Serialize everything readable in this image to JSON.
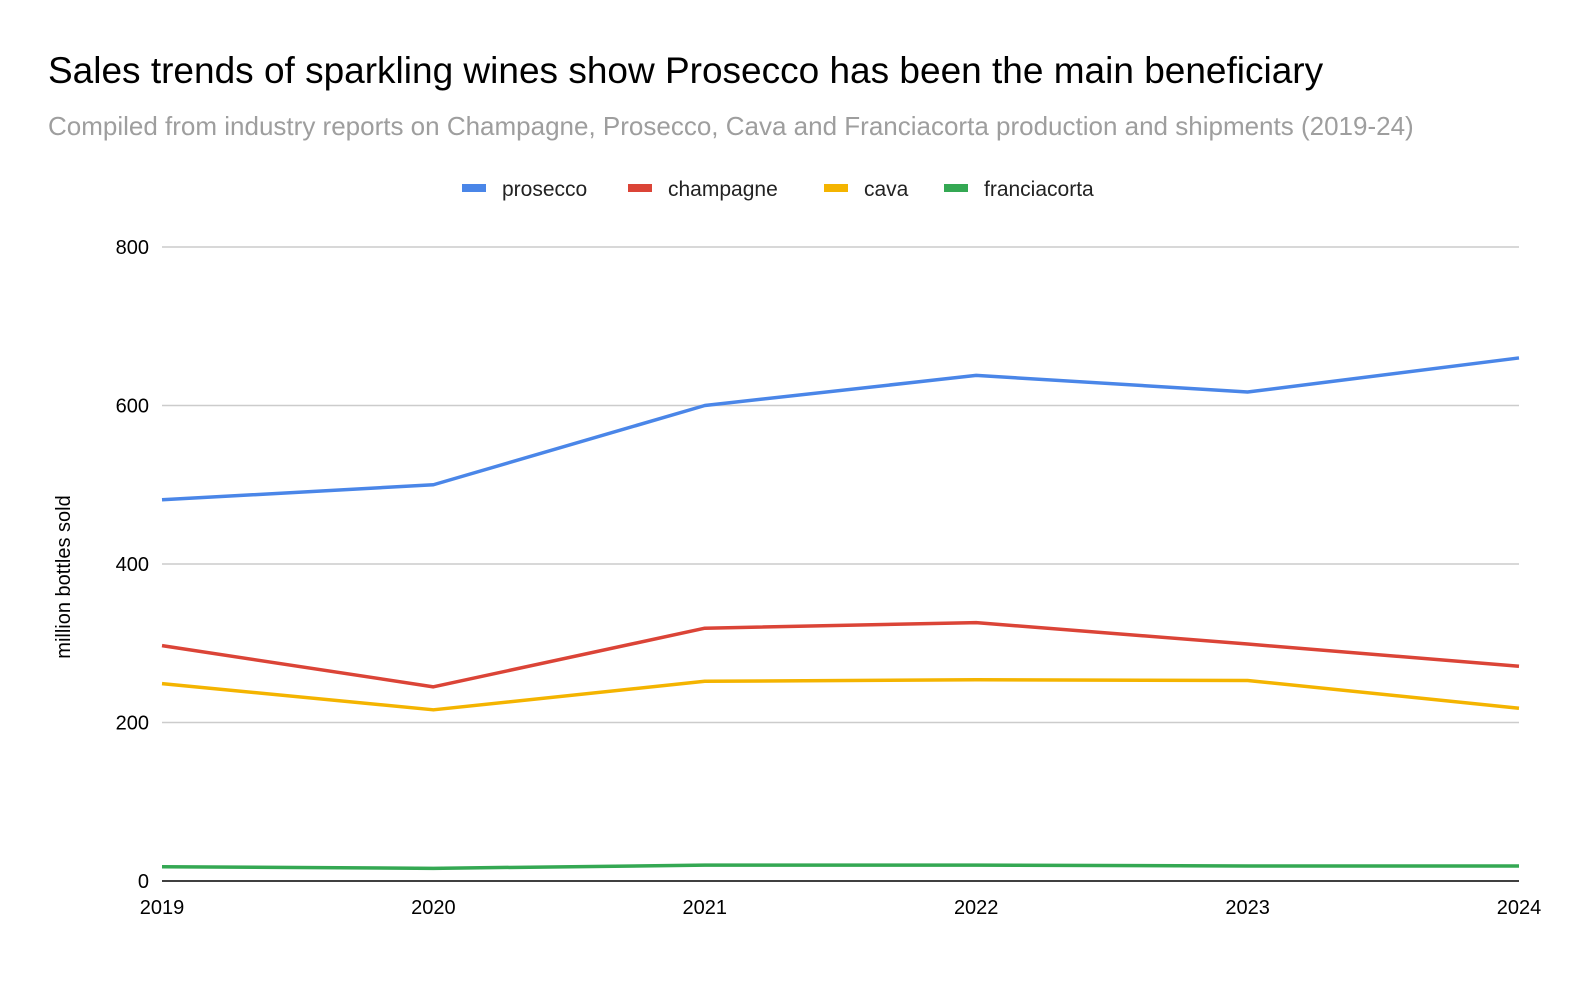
{
  "chart_data": {
    "type": "line",
    "title": "Sales trends of sparkling wines show Prosecco has been the main beneficiary",
    "subtitle": "Compiled from industry reports on Champagne, Prosecco, Cava and Franciacorta production and shipments (2019-24)",
    "xlabel": "",
    "ylabel": "million bottles sold",
    "x": [
      "2019",
      "2020",
      "2021",
      "2022",
      "2023",
      "2024"
    ],
    "ylim": [
      0,
      800
    ],
    "yticks": [
      0,
      200,
      400,
      600,
      800
    ],
    "grid": true,
    "legend_position": "top",
    "series": [
      {
        "name": "prosecco",
        "color": "#4a86e8",
        "values": [
          481,
          500,
          600,
          638,
          617,
          660
        ]
      },
      {
        "name": "champagne",
        "color": "#db4437",
        "values": [
          297,
          245,
          319,
          326,
          299,
          271
        ]
      },
      {
        "name": "cava",
        "color": "#f4b400",
        "values": [
          249,
          216,
          252,
          254,
          253,
          218
        ]
      },
      {
        "name": "franciacorta",
        "color": "#34a853",
        "values": [
          18,
          16,
          20,
          20,
          19,
          19
        ]
      }
    ]
  }
}
